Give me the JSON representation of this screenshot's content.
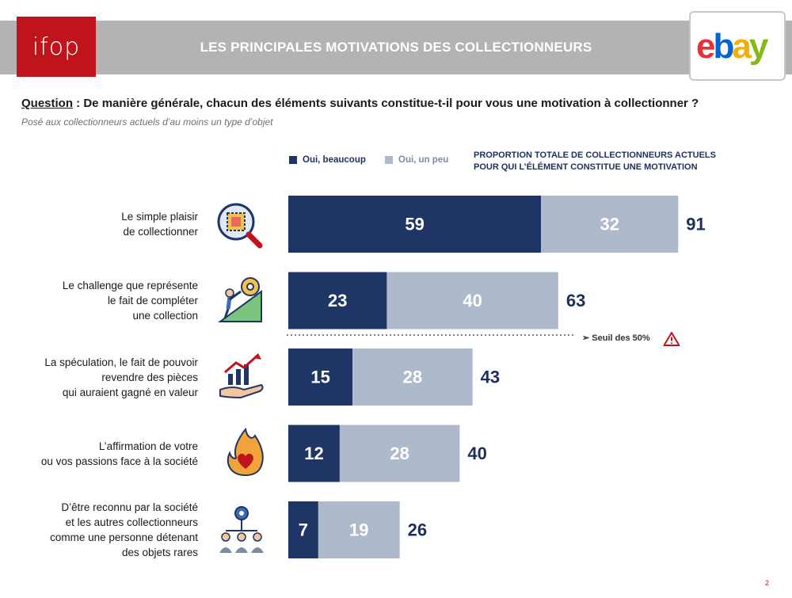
{
  "header": {
    "title": "LES PRINCIPALES MOTIVATIONS DES COLLECTIONNEURS",
    "ifop_logo_text": "ifop",
    "ebay_logo_text": "ebay"
  },
  "question": {
    "label": "Question",
    "text": " : De manière générale, chacun des éléments suivants constitue-t-il pour vous une motivation à collectionner ?"
  },
  "subtitle": "Posé aux collectionneurs actuels d’au moins un type d’objet",
  "legend": {
    "series1": "Oui, beaucoup",
    "series2": "Oui, un peu",
    "total_line1": "PROPORTION TOTALE DE COLLECTIONNEURS ACTUELS",
    "total_line2": "POUR QUI L’ÉLÉMENT CONSTITUE UNE MOTIVATION"
  },
  "threshold_label": "➢ Seuil des 50%",
  "page_number": "2",
  "icons": [
    "stamp-magnifier-icon",
    "climber-gear-icon",
    "hand-growth-chart-icon",
    "burning-heart-icon",
    "group-network-gear-icon"
  ],
  "colors": {
    "series1": "#1e3566",
    "series2": "#afb9cc",
    "brand_red": "#c0141c",
    "header_grey": "#b3b3b3"
  },
  "chart_data": {
    "type": "bar",
    "orientation": "horizontal",
    "stacked": true,
    "categories": [
      [
        "Le simple plaisir",
        "de collectionner"
      ],
      [
        "Le challenge que représente",
        "le fait de compléter",
        "une collection"
      ],
      [
        "La spéculation, le fait de pouvoir",
        "revendre des pièces",
        "qui auraient gagné en valeur"
      ],
      [
        "L’affirmation de votre",
        "ou vos passions face à la société"
      ],
      [
        "D’être reconnu par la société",
        "et les autres collectionneurs",
        "comme une personne détenant",
        "des objets rares"
      ]
    ],
    "series": [
      {
        "name": "Oui, beaucoup",
        "values": [
          59,
          23,
          15,
          12,
          7
        ]
      },
      {
        "name": "Oui, un peu",
        "values": [
          32,
          40,
          28,
          28,
          19
        ]
      }
    ],
    "totals": [
      91,
      63,
      43,
      40,
      26
    ],
    "threshold": 50,
    "xlim": [
      0,
      100
    ]
  }
}
